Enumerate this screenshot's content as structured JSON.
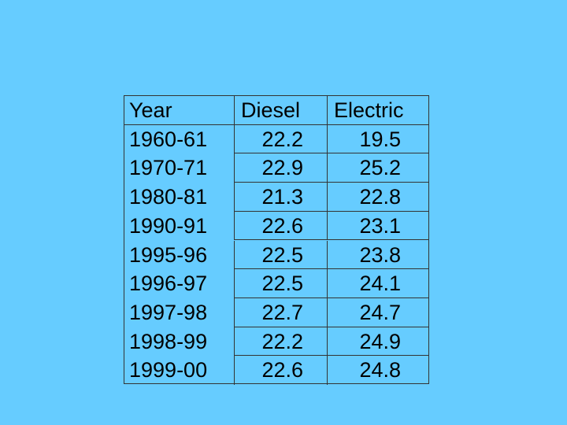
{
  "table": {
    "header": [
      "Year",
      "Diesel",
      "Electric"
    ],
    "rows": [
      [
        "1960-61",
        22.2,
        19.5
      ],
      [
        "1970-71",
        22.9,
        25.2
      ],
      [
        "1980-81",
        21.3,
        22.8
      ],
      [
        "1990-91",
        22.6,
        23.1
      ],
      [
        "1995-96",
        22.5,
        23.8
      ],
      [
        "1996-97",
        22.5,
        24.1
      ],
      [
        "1997-98",
        22.7,
        24.7
      ],
      [
        "1998-99",
        22.2,
        24.9
      ],
      [
        "1999-00",
        22.6,
        24.8
      ]
    ]
  }
}
